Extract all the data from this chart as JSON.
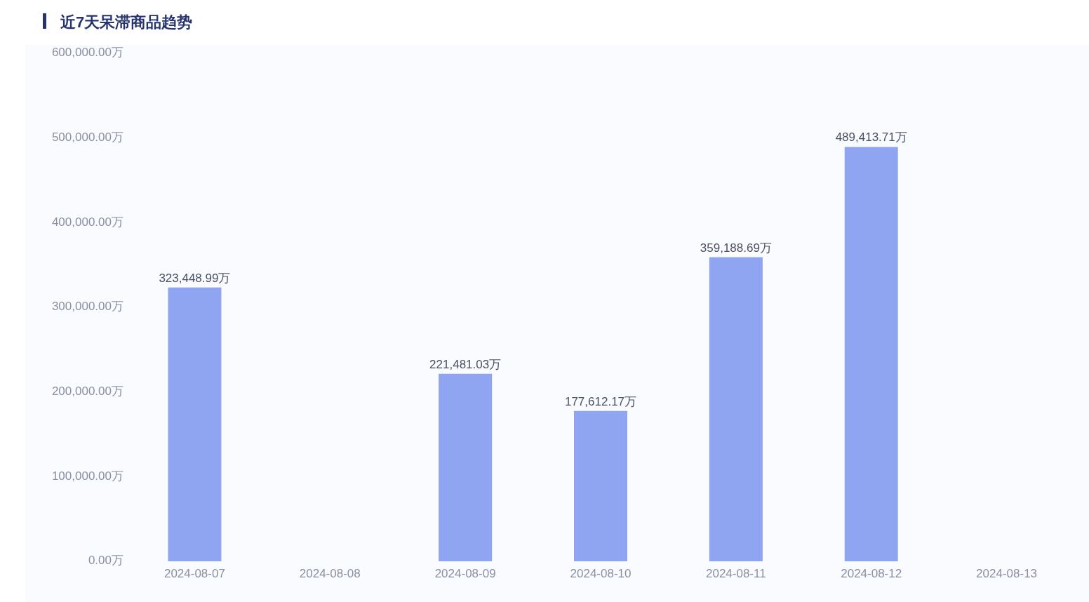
{
  "chart_data": {
    "type": "bar",
    "title": "近7天呆滞商品趋势",
    "categories": [
      "2024-08-07",
      "2024-08-08",
      "2024-08-09",
      "2024-08-10",
      "2024-08-11",
      "2024-08-12",
      "2024-08-13"
    ],
    "values": [
      323448.99,
      null,
      221481.03,
      177612.17,
      359188.69,
      489413.71,
      null
    ],
    "value_labels": [
      "323,448.99万",
      null,
      "221,481.03万",
      "177,612.17万",
      "359,188.69万",
      "489,413.71万",
      null
    ],
    "color": "#8fa5f1",
    "ylim": [
      0,
      600000
    ],
    "yticks": [
      {
        "value": 0,
        "label": "0.00万"
      },
      {
        "value": 100000,
        "label": "100,000.00万"
      },
      {
        "value": 200000,
        "label": "200,000.00万"
      },
      {
        "value": 300000,
        "label": "300,000.00万"
      },
      {
        "value": 400000,
        "label": "400,000.00万"
      },
      {
        "value": 500000,
        "label": "500,000.00万"
      },
      {
        "value": 600000,
        "label": "600,000.00万"
      }
    ],
    "grid": false
  }
}
